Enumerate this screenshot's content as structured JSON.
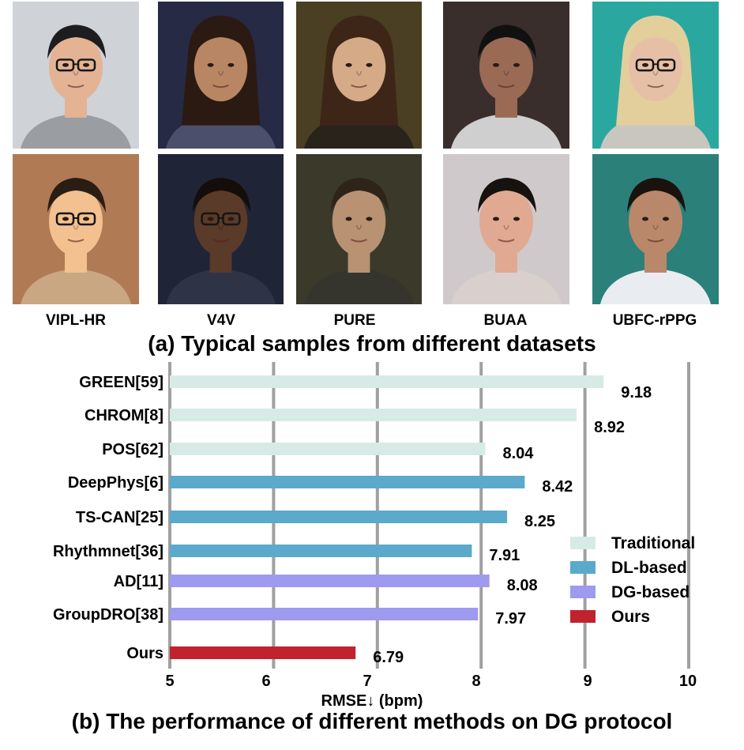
{
  "datasets": [
    {
      "name": "VIPL-HR"
    },
    {
      "name": "V4V"
    },
    {
      "name": "PURE"
    },
    {
      "name": "BUAA"
    },
    {
      "name": "UBFC-rPPG"
    }
  ],
  "caption_a": "(a) Typical samples from different datasets",
  "caption_b": "(b) The performance of different methods on DG protocol",
  "chart_data": {
    "type": "bar",
    "orientation": "horizontal",
    "categories": [
      "GREEN[59]",
      "CHROM[8]",
      "POS[62]",
      "DeepPhys[6]",
      "TS-CAN[25]",
      "Rhythmnet[36]",
      "AD[11]",
      "GroupDRO[38]",
      "Ours"
    ],
    "values": [
      9.18,
      8.92,
      8.04,
      8.42,
      8.25,
      7.91,
      8.08,
      7.97,
      6.79
    ],
    "value_labels": [
      "9.18",
      "8.92",
      "8.04",
      "8.42",
      "8.25",
      "7.91",
      "8.08",
      "7.97",
      "6.79"
    ],
    "groups": [
      "Traditional",
      "Traditional",
      "Traditional",
      "DL-based",
      "DL-based",
      "DL-based",
      "DG-based",
      "DG-based",
      "Ours"
    ],
    "legend": [
      {
        "name": "Traditional",
        "color": "#d6ebe6"
      },
      {
        "name": "DL-based",
        "color": "#5ba9cb"
      },
      {
        "name": "DG-based",
        "color": "#9e9af0"
      },
      {
        "name": "Ours",
        "color": "#c0222e"
      }
    ],
    "xlim": [
      5,
      10
    ],
    "xticks": [
      5,
      6,
      7,
      8,
      9,
      10
    ],
    "xlabel": "RMSE↓ (bpm)",
    "grid": true,
    "legend_position": "right"
  }
}
